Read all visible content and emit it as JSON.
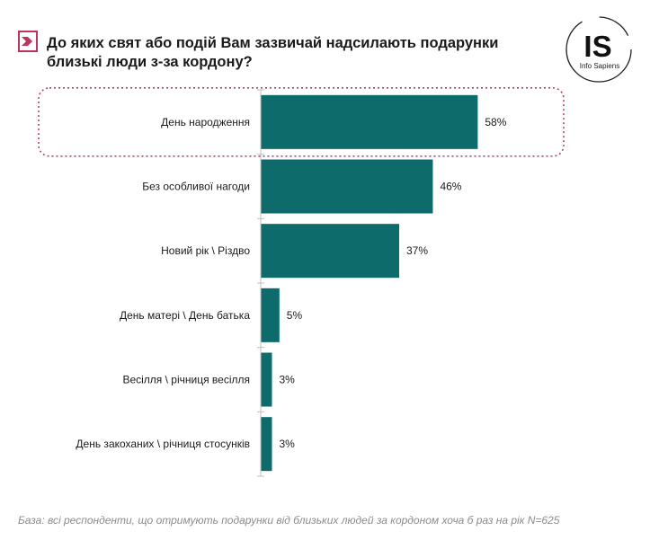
{
  "header": {
    "title": "До яких свят або подій Вам зазвичай надсилають подарунки близькі люди з-за кордону?",
    "logo_mark": "IS",
    "logo_text": "Info Sapiens"
  },
  "colors": {
    "bar": "#0e6b6b",
    "accent": "#c0335f",
    "highlight_border": "#b04670",
    "axis": "#bfbfbf"
  },
  "chart_data": {
    "type": "bar",
    "orientation": "horizontal",
    "categories": [
      "День народження",
      "Без особливої нагоди",
      "Новий рік \\ Різдво",
      "День матері \\ День батька",
      "Весілля \\ річниця весілля",
      "День закоханих \\ річниця стосунків"
    ],
    "values": [
      58,
      46,
      37,
      5,
      3,
      3
    ],
    "value_labels": [
      "58%",
      "46%",
      "37%",
      "5%",
      "3%",
      "3%"
    ],
    "unit": "%",
    "xlim": [
      0,
      68
    ],
    "highlighted_category": "День народження",
    "grid": false
  },
  "footnote": "База: всі респонденти, що отримують подарунки від близьких людей за кордоном хоча б раз на рік N=625"
}
